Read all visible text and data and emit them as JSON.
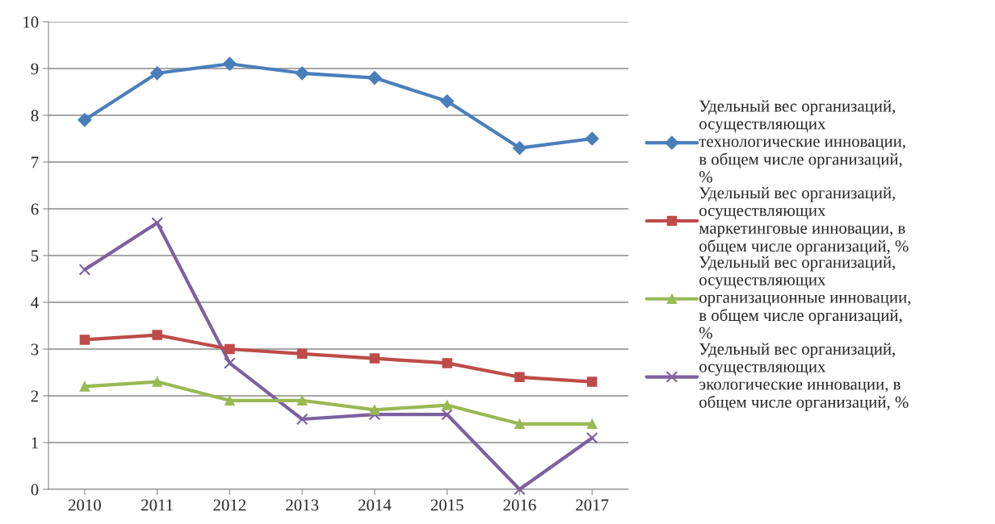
{
  "chart_data": {
    "type": "line",
    "categories": [
      "2010",
      "2011",
      "2012",
      "2013",
      "2014",
      "2015",
      "2016",
      "2017"
    ],
    "series": [
      {
        "name": "Удельный вес организаций, осуществляющих технологические инновации, в общем числе организаций, %",
        "color": "#4a7ebb",
        "marker": "diamond",
        "values": [
          7.9,
          8.9,
          9.1,
          8.9,
          8.8,
          8.3,
          7.3,
          7.5
        ]
      },
      {
        "name": "Удельный вес организаций, осуществляющих маркетинговые инновации, в общем числе организаций, %",
        "color": "#be4b48",
        "marker": "square",
        "values": [
          3.2,
          3.3,
          3.0,
          2.9,
          2.8,
          2.7,
          2.4,
          2.3
        ]
      },
      {
        "name": "Удельный вес организаций, осуществляющих организационные инновации, в общем числе организаций, %",
        "color": "#98b954",
        "marker": "triangle",
        "values": [
          2.2,
          2.3,
          1.9,
          1.9,
          1.7,
          1.8,
          1.4,
          1.4
        ]
      },
      {
        "name": "Удельный вес организаций, осуществляющих экологические инновации, в общем числе организаций, %",
        "color": "#7d60a0",
        "marker": "cross",
        "values": [
          4.7,
          5.7,
          2.7,
          1.5,
          1.6,
          1.6,
          0.0,
          1.1
        ]
      }
    ],
    "ylim": [
      0,
      10
    ],
    "yticks": [
      0,
      1,
      2,
      3,
      4,
      5,
      6,
      7,
      8,
      9,
      10
    ],
    "grid": "y",
    "legend": "right",
    "line_style": "solid"
  }
}
